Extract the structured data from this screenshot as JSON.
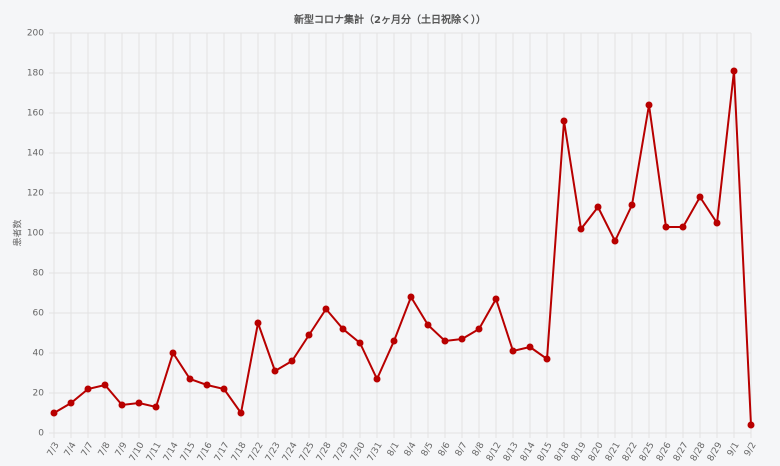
{
  "chart_data": {
    "type": "line",
    "title": "新型コロナ集計（2ヶ月分（土日祝除く））",
    "y_label": "患者数",
    "categories": [
      "7/3",
      "7/4",
      "7/7",
      "7/8",
      "7/9",
      "7/10",
      "7/11",
      "7/14",
      "7/15",
      "7/16",
      "7/17",
      "7/18",
      "7/22",
      "7/23",
      "7/24",
      "7/25",
      "7/28",
      "7/29",
      "7/30",
      "7/31",
      "8/1",
      "8/4",
      "8/5",
      "8/6",
      "8/7",
      "8/8",
      "8/12",
      "8/13",
      "8/14",
      "8/15",
      "8/18",
      "8/19",
      "8/20",
      "8/21",
      "8/22",
      "8/25",
      "8/26",
      "8/27",
      "8/28",
      "8/29",
      "9/1",
      "9/2"
    ],
    "series": [
      {
        "name": "患者数",
        "color": "#b80000",
        "values": [
          10,
          15,
          22,
          24,
          14,
          15,
          13,
          40,
          27,
          24,
          22,
          10,
          55,
          31,
          36,
          49,
          62,
          52,
          45,
          27,
          46,
          68,
          54,
          46,
          47,
          52,
          67,
          41,
          43,
          37,
          156,
          102,
          113,
          96,
          114,
          164,
          103,
          103,
          118,
          105,
          181,
          4
        ]
      }
    ],
    "ylim": [
      0,
      200
    ],
    "yticks": [
      0,
      20,
      40,
      60,
      80,
      100,
      120,
      140,
      160,
      180,
      200
    ],
    "grid": true
  }
}
